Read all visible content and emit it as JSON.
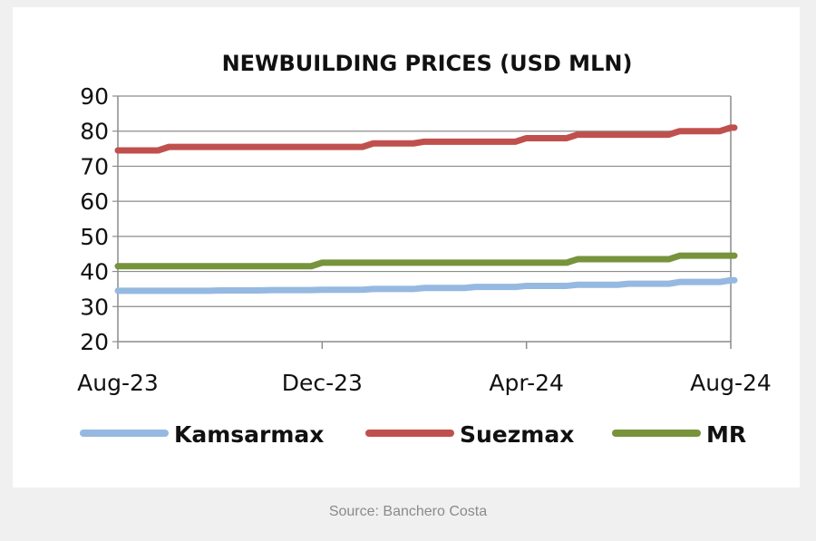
{
  "caption": "Source: Banchero Costa",
  "chart_data": {
    "type": "line",
    "title": "NEWBUILDING PRICES (USD MLN)",
    "xlabel": "",
    "ylabel": "",
    "ylim": [
      20,
      90
    ],
    "yticks": [
      90,
      80,
      70,
      60,
      50,
      40,
      30,
      20
    ],
    "x": [
      "Aug-23",
      "Sep-23",
      "Oct-23",
      "Nov-23",
      "Dec-23",
      "Jan-24",
      "Feb-24",
      "Mar-24",
      "Apr-24",
      "May-24",
      "Jun-24",
      "Jul-24",
      "Aug-24"
    ],
    "xtick_labels": [
      "Aug-23",
      "Dec-23",
      "Apr-24",
      "Aug-24"
    ],
    "grid": "horizontal",
    "legend_position": "bottom",
    "series": [
      {
        "name": "Kamsarmax",
        "color": "#95b9e1",
        "values": [
          34.5,
          34.5,
          34.6,
          34.7,
          34.8,
          35.0,
          35.3,
          35.6,
          35.9,
          36.2,
          36.5,
          37.0,
          37.5
        ]
      },
      {
        "name": "Suezmax",
        "color": "#c0504d",
        "values": [
          74.5,
          75.5,
          75.5,
          75.5,
          75.5,
          76.5,
          77.0,
          77.0,
          78.0,
          79.0,
          79.0,
          80.0,
          81.0
        ]
      },
      {
        "name": "MR",
        "color": "#77933c",
        "values": [
          41.5,
          41.5,
          41.5,
          41.5,
          42.5,
          42.5,
          42.5,
          42.5,
          42.5,
          43.5,
          43.5,
          44.5,
          44.5
        ]
      }
    ]
  }
}
